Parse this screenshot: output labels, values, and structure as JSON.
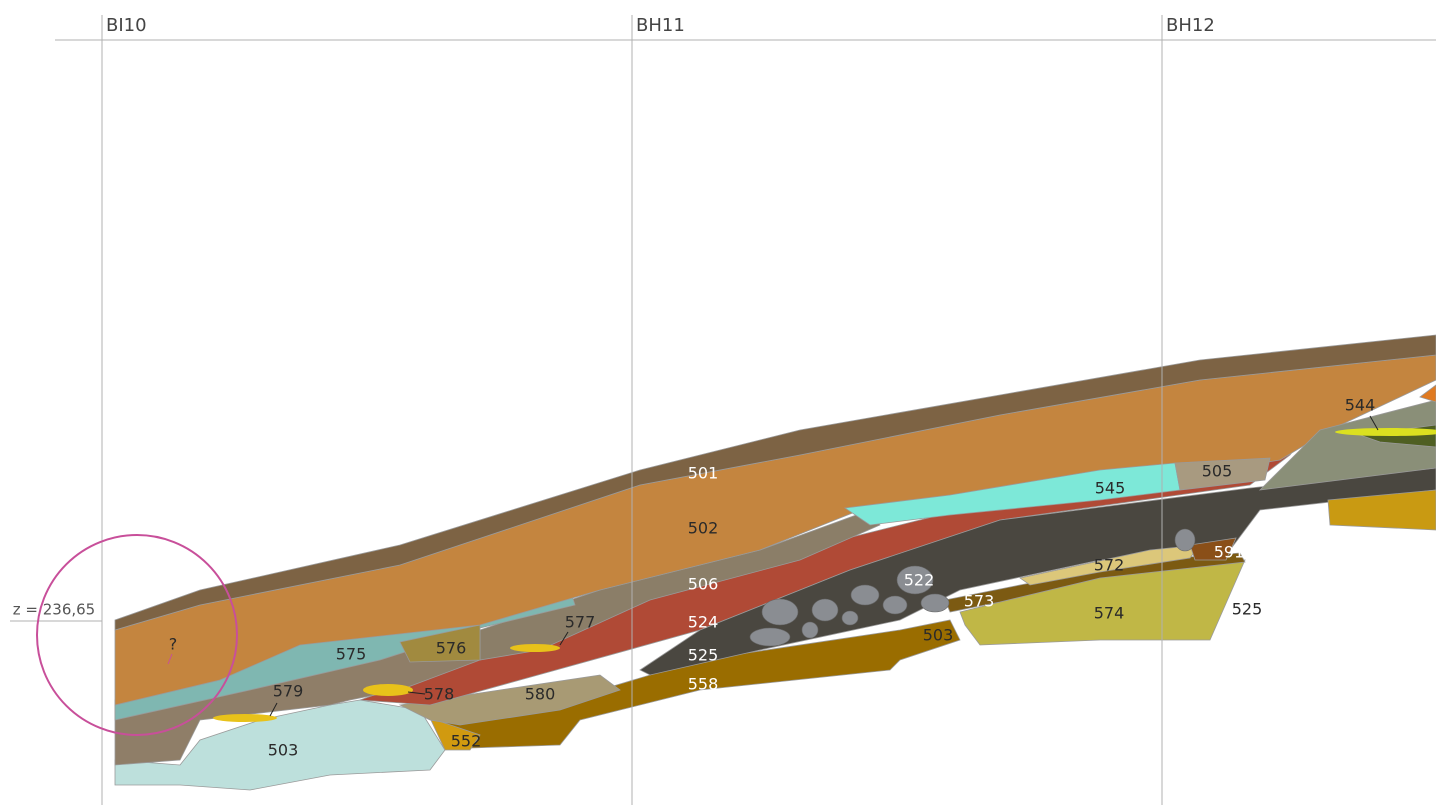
{
  "grid_labels": [
    "BI10",
    "BH11",
    "BH12"
  ],
  "elevation_label": "z = 236,65",
  "layers": [
    {
      "label": "501"
    },
    {
      "label": "502"
    },
    {
      "label": "506"
    },
    {
      "label": "524"
    },
    {
      "label": "525"
    },
    {
      "label": "558"
    },
    {
      "label": "577"
    },
    {
      "label": "576"
    },
    {
      "label": "575"
    },
    {
      "label": "579"
    },
    {
      "label": "578"
    },
    {
      "label": "580"
    },
    {
      "label": "503"
    },
    {
      "label": "552"
    },
    {
      "label": "?"
    },
    {
      "label": "522"
    },
    {
      "label": "573"
    },
    {
      "label": "503"
    },
    {
      "label": "572"
    },
    {
      "label": "574"
    },
    {
      "label": "591"
    },
    {
      "label": "525"
    },
    {
      "label": "545"
    },
    {
      "label": "505"
    },
    {
      "label": "544"
    }
  ]
}
